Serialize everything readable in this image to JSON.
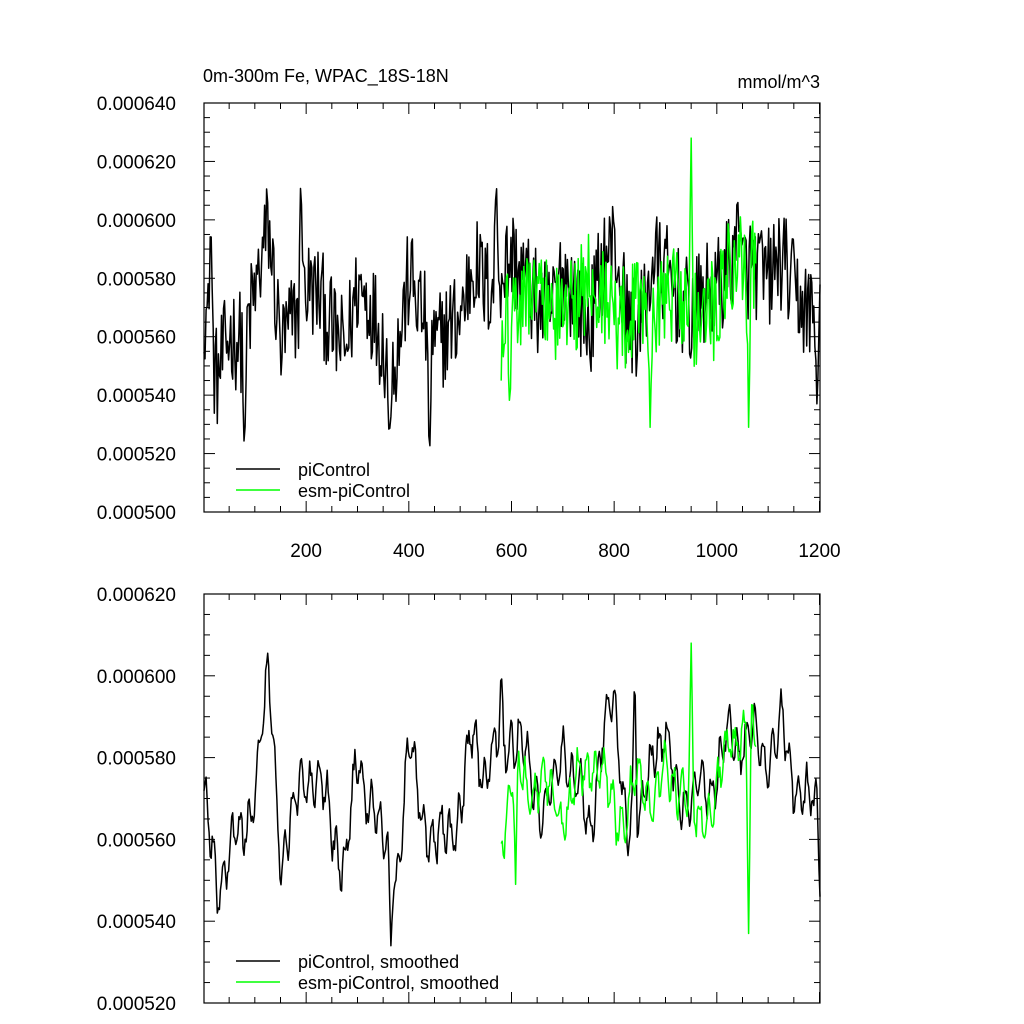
{
  "chart_data": [
    {
      "type": "line",
      "title": "0m-300m Fe, WPAC_18S-18N",
      "units": "mmol/m^3",
      "xlim": [
        1,
        1201
      ],
      "ylim": [
        0.0005,
        0.00064
      ],
      "x_ticks": [
        200,
        400,
        600,
        800,
        1000,
        1200
      ],
      "x_tick_labels": [
        "200",
        "400",
        "600",
        "800",
        "1000",
        "1200"
      ],
      "y_ticks": [
        0.0005,
        0.00052,
        0.00054,
        0.00056,
        0.00058,
        0.0006,
        0.00062,
        0.00064
      ],
      "y_tick_labels": [
        "0.000500",
        "0.000520",
        "0.000540",
        "0.000560",
        "0.000580",
        "0.000600",
        "0.000620",
        "0.000640"
      ],
      "legend_position": "bottom-left",
      "series": [
        {
          "name": "piControl",
          "color": "#000000",
          "x_range": [
            1,
            1201
          ],
          "x_step": 25,
          "values": [
            0.000572,
            0.000545,
            0.000561,
            0.000558,
            0.000575,
            0.000598,
            0.000556,
            0.000566,
            0.000577,
            0.000574,
            0.000562,
            0.000555,
            0.000578,
            0.000571,
            0.000557,
            0.000553,
            0.000581,
            0.000568,
            0.000556,
            0.000563,
            0.000567,
            0.000586,
            0.000576,
            0.000582,
            0.000587,
            0.00058,
            0.000571,
            0.000568,
            0.000583,
            0.000574,
            0.000562,
            0.000585,
            0.000592,
            0.000565,
            0.000563,
            0.000586,
            0.000581,
            0.000573,
            0.000567,
            0.000574,
            0.000576,
            0.000586,
            0.000584,
            0.000583,
            0.00058,
            0.000587,
            0.000575,
            0.000569,
            0.000566
          ]
        },
        {
          "name": "esm-piControl",
          "color": "#00ff00",
          "x_range": [
            580,
            1076
          ],
          "x_step": 24.8,
          "values": [
            0.000562,
            0.000578,
            0.000571,
            0.000576,
            0.000569,
            0.000567,
            0.000573,
            0.000581,
            0.000574,
            0.000567,
            0.000567,
            0.000575,
            0.00057,
            0.000576,
            0.000575,
            0.000564,
            0.000568,
            0.00057,
            0.000587,
            0.000584,
            0.000585
          ]
        }
      ],
      "extremes": {
        "piControl": {
          "x": [
            14,
            80,
            190,
            362,
            440,
            570,
            1040,
            1195
          ],
          "y": [
            0.000603,
            0.000517,
            0.000617,
            0.00052,
            0.000515,
            0.000615,
            0.000613,
            0.000537
          ]
        },
        "esm-piControl": {
          "x": [
            597,
            870,
            950,
            1062
          ],
          "y": [
            0.000532,
            0.000529,
            0.000628,
            0.000529
          ]
        }
      }
    },
    {
      "type": "line",
      "title": "",
      "xlim": [
        1,
        1201
      ],
      "ylim": [
        0.00052,
        0.00062
      ],
      "x_ticks": [
        200,
        400,
        600,
        800,
        1000,
        1200
      ],
      "y_ticks": [
        0.00052,
        0.00054,
        0.00056,
        0.00058,
        0.0006,
        0.00062
      ],
      "y_tick_labels": [
        "0.000520",
        "0.000540",
        "0.000560",
        "0.000580",
        "0.000600",
        "0.000620"
      ],
      "legend_position": "bottom-left",
      "series": [
        {
          "name": "piControl, smoothed",
          "color": "#000000",
          "x_range": [
            1,
            1201
          ],
          "x_step": 25,
          "values": [
            0.000572,
            0.000545,
            0.000561,
            0.000558,
            0.000575,
            0.000598,
            0.000556,
            0.000566,
            0.000577,
            0.000574,
            0.000562,
            0.000555,
            0.000578,
            0.000571,
            0.000557,
            0.000553,
            0.000581,
            0.000568,
            0.000556,
            0.000563,
            0.000567,
            0.000586,
            0.000576,
            0.000582,
            0.000587,
            0.00058,
            0.000571,
            0.000568,
            0.000583,
            0.000574,
            0.000562,
            0.000585,
            0.000592,
            0.000565,
            0.000563,
            0.000586,
            0.000581,
            0.000573,
            0.000567,
            0.000574,
            0.000576,
            0.000586,
            0.000584,
            0.000583,
            0.00058,
            0.000587,
            0.000575,
            0.000569,
            0.000566
          ]
        },
        {
          "name": "esm-piControl, smoothed",
          "color": "#00ff00",
          "x_range": [
            580,
            1076
          ],
          "x_step": 24.8,
          "values": [
            0.000562,
            0.000578,
            0.000571,
            0.000576,
            0.000569,
            0.000567,
            0.000573,
            0.000581,
            0.000574,
            0.000567,
            0.000567,
            0.000575,
            0.00057,
            0.000576,
            0.000575,
            0.000564,
            0.000568,
            0.00057,
            0.000587,
            0.000584,
            0.000585
          ]
        }
      ],
      "extremes": {
        "piControl, smoothed": {
          "x": [
            1201,
            580,
            365,
            840
          ],
          "y": [
            0.000546,
            0.000602,
            0.000534,
            0.000603
          ]
        },
        "esm-piControl, smoothed": {
          "x": [
            608,
            950,
            1062
          ],
          "y": [
            0.000549,
            0.000608,
            0.000537
          ]
        }
      }
    }
  ]
}
